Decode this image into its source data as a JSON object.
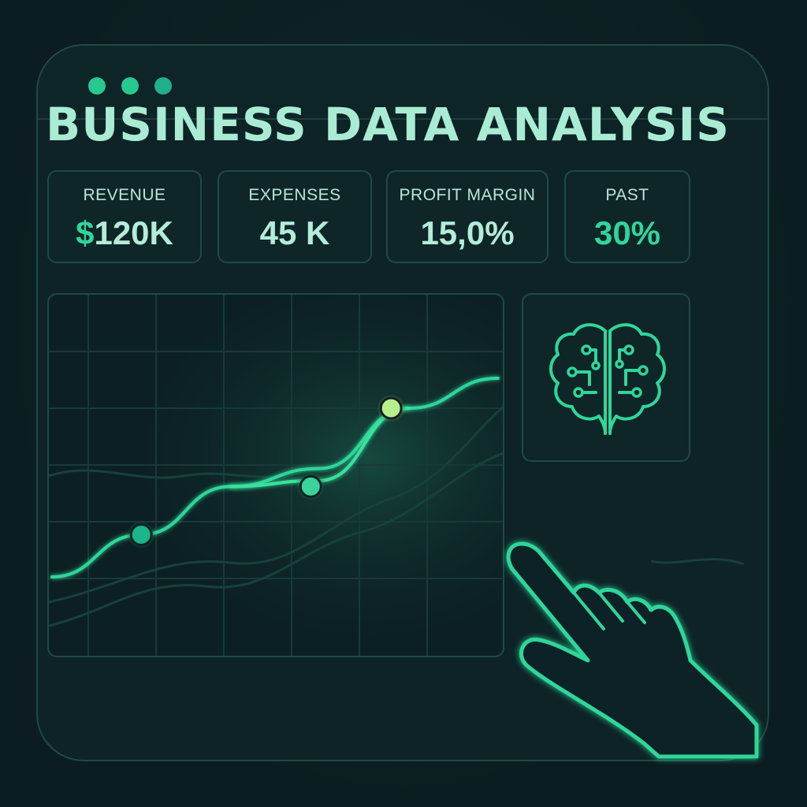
{
  "window": {
    "title": "BUSINESS DATA ANALYSIS",
    "controls": [
      "dot",
      "dot",
      "dot"
    ]
  },
  "kpis": [
    {
      "label": "REVENUE",
      "value_prefix": "$",
      "value": "120K"
    },
    {
      "label": "EXPENSES",
      "value_prefix": "",
      "value": "45 K"
    },
    {
      "label": "PROFIT MARGIN",
      "value_prefix": "",
      "value": "15,0%"
    },
    {
      "label": "PAST",
      "value_prefix": "",
      "value": "30%"
    }
  ],
  "icons": {
    "brain": "brain-circuit-icon",
    "hand": "pointing-hand-icon"
  },
  "colors": {
    "background": "#0b1d20",
    "accent": "#2fd69a",
    "accent_light": "#a9ecd3",
    "highlight": "#b7ef8a",
    "border": "#1f4a46"
  },
  "chart_data": {
    "type": "line",
    "title": "",
    "xlabel": "",
    "ylabel": "",
    "grid": true,
    "series": [
      {
        "values": [
          {
            "x": 0,
            "y": 22
          },
          {
            "x": 1,
            "y": 36
          },
          {
            "x": 2,
            "y": 52
          },
          {
            "x": 3,
            "y": 58
          },
          {
            "x": 4,
            "y": 78
          },
          {
            "x": 5,
            "y": 88
          }
        ]
      },
      {
        "values": [
          {
            "x": 2,
            "y": 52
          },
          {
            "x": 3,
            "y": 54
          },
          {
            "x": 4,
            "y": 78
          }
        ]
      }
    ],
    "highlighted_points": [
      {
        "x": 1,
        "y": 36
      },
      {
        "x": 2.9,
        "y": 52
      },
      {
        "x": 3.8,
        "y": 78
      }
    ],
    "ylim": [
      0,
      100
    ]
  }
}
